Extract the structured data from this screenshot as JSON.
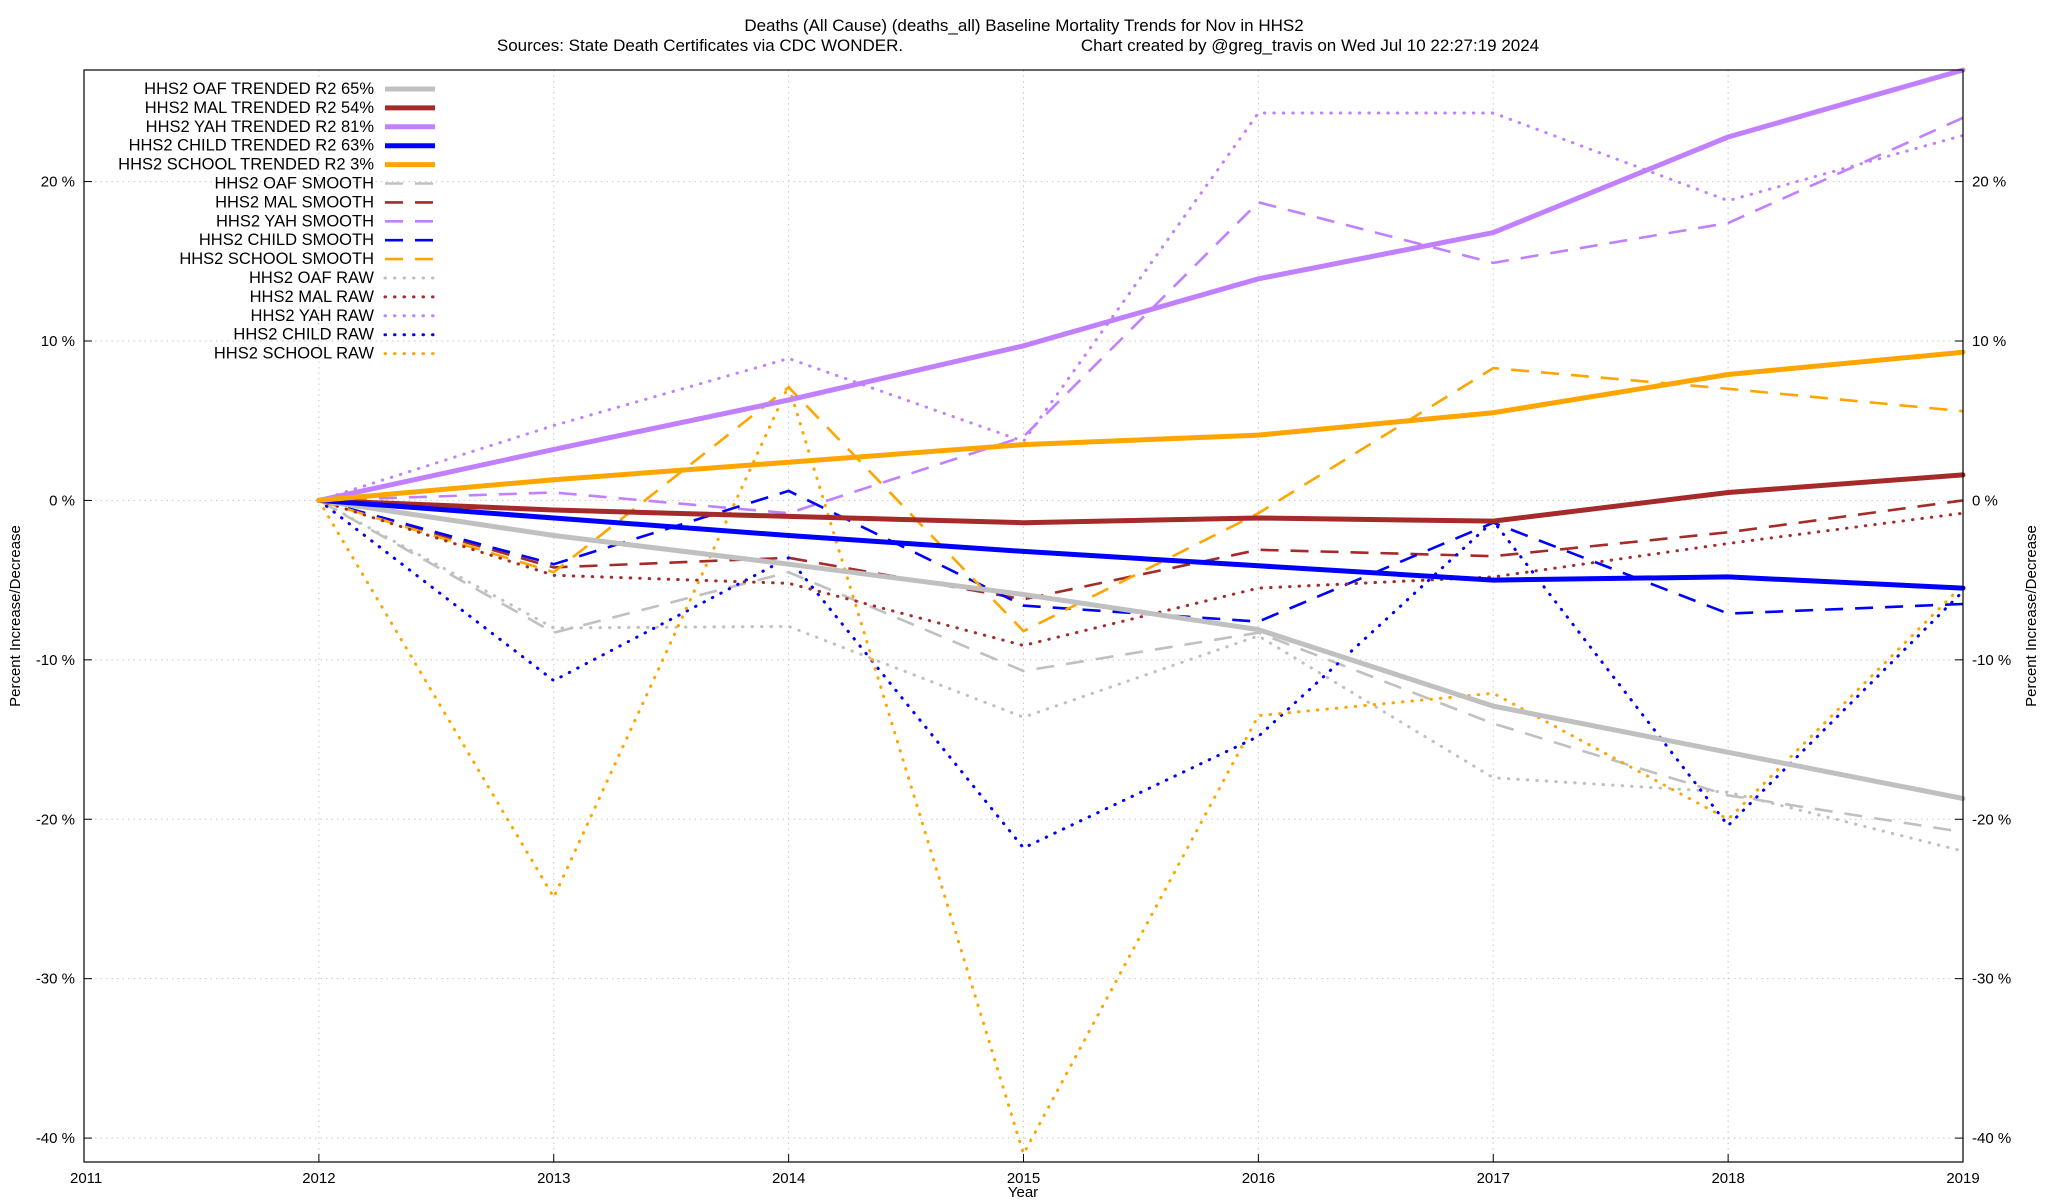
{
  "chart_data": {
    "type": "line",
    "title_line1": "Deaths (All Cause) (deaths_all)  Baseline Mortality Trends for Nov in HHS2",
    "title_line2_left": "Sources: State Death Certificates via CDC WONDER.",
    "title_line2_right": "Chart created by @greg_travis on Wed Jul 10 22:27:19 2024",
    "xlabel": "Year",
    "ylabel_left": "Percent Increase/Decrease",
    "ylabel_right": "Percent Increase/Decrease",
    "xlim": [
      2011,
      2019
    ],
    "ylim": [
      -41.5,
      27
    ],
    "x_ticks": [
      2011,
      2012,
      2013,
      2014,
      2015,
      2016,
      2017,
      2018,
      2019
    ],
    "x_tick_labels": [
      "2011",
      "2012",
      "2013",
      "2014",
      "2015",
      "2016",
      "2017",
      "2018",
      "2019"
    ],
    "y_ticks": [
      20,
      10,
      0,
      -10,
      -20,
      -30,
      -40
    ],
    "y_tick_labels": [
      "20 %",
      "10 %",
      "0 %",
      "-10 %",
      "-20 %",
      "-30 %",
      "-40 %"
    ],
    "grid": true,
    "legend_position": "top-left",
    "x": [
      2012,
      2013,
      2014,
      2015,
      2016,
      2017,
      2018,
      2019
    ],
    "series": [
      {
        "name": "HHS2 OAF TRENDED R2  65%",
        "color": "#c0c0c0",
        "style": "solid",
        "values": [
          0,
          -2.2,
          -4.0,
          -5.9,
          -8.1,
          -12.9,
          -15.8,
          -18.7
        ]
      },
      {
        "name": "HHS2 MAL TRENDED R2  54%",
        "color": "#a52a2a",
        "style": "solid",
        "values": [
          0,
          -0.6,
          -1.0,
          -1.4,
          -1.1,
          -1.3,
          0.5,
          1.6
        ]
      },
      {
        "name": "HHS2 YAH TRENDED R2  81%",
        "color": "#c080ff",
        "style": "solid",
        "values": [
          0,
          3.2,
          6.3,
          9.7,
          13.9,
          16.8,
          22.8,
          27.0
        ]
      },
      {
        "name": "HHS2 CHILD TRENDED R2  63%",
        "color": "#0000ff",
        "style": "solid",
        "values": [
          0,
          -1.1,
          -2.2,
          -3.2,
          -4.1,
          -5.0,
          -4.8,
          -5.5
        ]
      },
      {
        "name": "HHS2 SCHOOL TRENDED R2   3%",
        "color": "#ffa500",
        "style": "solid",
        "values": [
          0,
          1.3,
          2.4,
          3.5,
          4.1,
          5.5,
          7.9,
          9.3
        ]
      },
      {
        "name": "HHS2 OAF SMOOTH",
        "color": "#c0c0c0",
        "style": "dashed",
        "values": [
          0,
          -8.3,
          -4.5,
          -10.7,
          -8.3,
          -14.0,
          -18.5,
          -20.8
        ]
      },
      {
        "name": "HHS2 MAL SMOOTH",
        "color": "#a52a2a",
        "style": "dashed",
        "values": [
          0,
          -4.2,
          -3.6,
          -6.2,
          -3.1,
          -3.5,
          -2.0,
          0.0
        ]
      },
      {
        "name": "HHS2 YAH SMOOTH",
        "color": "#c080ff",
        "style": "dashed",
        "values": [
          0,
          0.5,
          -0.8,
          4.0,
          18.7,
          14.9,
          17.4,
          24.0
        ]
      },
      {
        "name": "HHS2 CHILD SMOOTH",
        "color": "#0000ff",
        "style": "dashed",
        "values": [
          0,
          -4.0,
          0.6,
          -6.6,
          -7.6,
          -1.4,
          -7.1,
          -6.5
        ]
      },
      {
        "name": "HHS2 SCHOOL SMOOTH",
        "color": "#ffa500",
        "style": "dashed",
        "values": [
          0,
          -4.5,
          7.1,
          -8.2,
          -0.8,
          8.3,
          7.0,
          5.6
        ]
      },
      {
        "name": "HHS2 OAF RAW",
        "color": "#c0c0c0",
        "style": "dotted",
        "values": [
          0,
          -8.0,
          -7.9,
          -13.6,
          -8.5,
          -17.4,
          -18.3,
          -22.0
        ]
      },
      {
        "name": "HHS2 MAL RAW",
        "color": "#a52a2a",
        "style": "dotted",
        "values": [
          0,
          -4.7,
          -5.2,
          -9.1,
          -5.5,
          -4.8,
          -2.7,
          -0.8
        ]
      },
      {
        "name": "HHS2 YAH RAW",
        "color": "#c080ff",
        "style": "dotted",
        "values": [
          0,
          4.7,
          8.9,
          3.7,
          24.3,
          24.3,
          18.8,
          22.9
        ]
      },
      {
        "name": "HHS2 CHILD RAW",
        "color": "#0000ff",
        "style": "dotted",
        "values": [
          0,
          -11.3,
          -3.6,
          -21.8,
          -14.8,
          -1.3,
          -20.4,
          -5.7
        ]
      },
      {
        "name": "HHS2 SCHOOL RAW",
        "color": "#ffa500",
        "style": "dotted",
        "values": [
          0,
          -24.9,
          7.2,
          -41.0,
          -13.5,
          -12.1,
          -20.0,
          -5.3
        ]
      }
    ]
  }
}
